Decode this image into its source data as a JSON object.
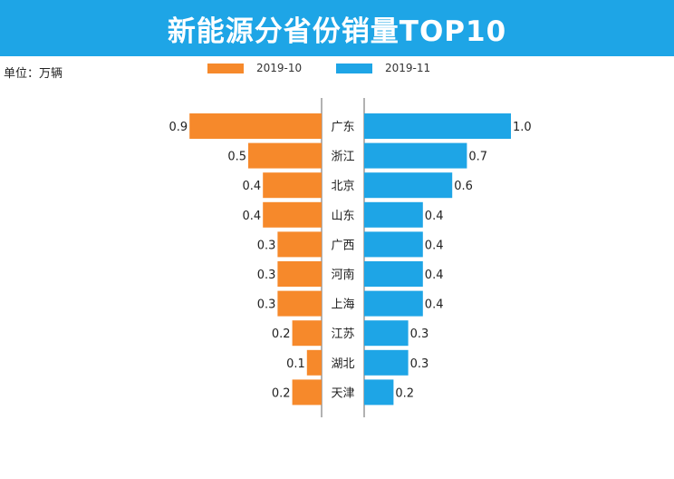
{
  "header": {
    "title": "新能源分省份销量TOP10"
  },
  "unit_label": "单位：万辆",
  "colors": {
    "header": "#1ea5e6",
    "series_left": "#f6892b",
    "series_right": "#1ea5e6"
  },
  "chart_data": {
    "type": "bar",
    "title": "新能源分省份销量TOP10",
    "unit": "单位：万辆",
    "legend_placement": "top",
    "grid": false,
    "categories": [
      "广东",
      "浙江",
      "北京",
      "山东",
      "广西",
      "河南",
      "上海",
      "江苏",
      "湖北",
      "天津"
    ],
    "series": [
      {
        "name": "2019-10",
        "values": [
          0.9,
          0.5,
          0.4,
          0.4,
          0.3,
          0.3,
          0.3,
          0.2,
          0.1,
          0.2
        ],
        "labels": [
          "0.9",
          "0.5",
          "0.4",
          "0.4",
          "0.3",
          "0.3",
          "0.3",
          "0.2",
          "0.1",
          "0.2"
        ]
      },
      {
        "name": "2019-11",
        "values": [
          1.0,
          0.7,
          0.6,
          0.4,
          0.4,
          0.4,
          0.4,
          0.3,
          0.3,
          0.2
        ],
        "labels": [
          "1.0",
          "0.7",
          "0.6",
          "0.4",
          "0.4",
          "0.4",
          "0.4",
          "0.3",
          "0.3",
          "0.2"
        ]
      }
    ],
    "xlim": [
      0,
      1.0
    ]
  }
}
